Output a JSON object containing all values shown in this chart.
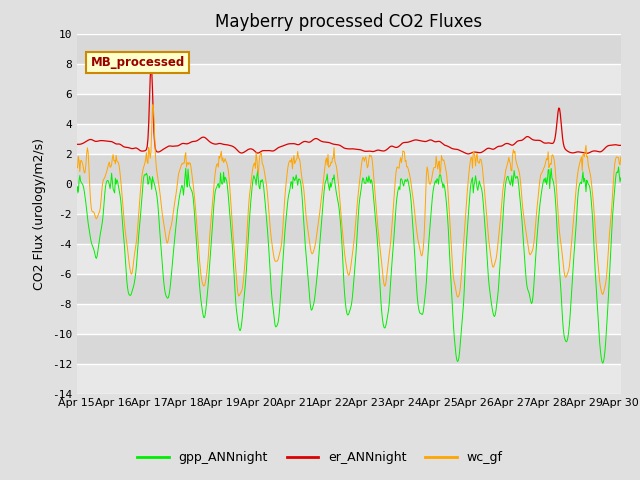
{
  "title": "Mayberry processed CO2 Fluxes",
  "ylabel": "CO2 Flux (urology/m2/s)",
  "ylim": [
    -14,
    10
  ],
  "yticks": [
    -14,
    -12,
    -10,
    -8,
    -6,
    -4,
    -2,
    0,
    2,
    4,
    6,
    8,
    10
  ],
  "xtick_labels": [
    "Apr 15",
    "Apr 16",
    "Apr 17",
    "Apr 18",
    "Apr 19",
    "Apr 20",
    "Apr 21",
    "Apr 22",
    "Apr 23",
    "Apr 24",
    "Apr 25",
    "Apr 26",
    "Apr 27",
    "Apr 28",
    "Apr 29",
    "Apr 30"
  ],
  "color_gpp": "#00ee00",
  "color_er": "#dd0000",
  "color_wc": "#ffa500",
  "legend_label_gpp": "gpp_ANNnight",
  "legend_label_er": "er_ANNnight",
  "legend_label_wc": "wc_gf",
  "inset_label": "MB_processed",
  "inset_bg": "#ffffcc",
  "inset_border": "#cc8800",
  "inset_text_color": "#990000",
  "bg_color": "#e0e0e0",
  "band_colors": [
    "#e8e8e8",
    "#d8d8d8"
  ],
  "title_fontsize": 12,
  "axis_fontsize": 9,
  "tick_fontsize": 8,
  "legend_fontsize": 9
}
